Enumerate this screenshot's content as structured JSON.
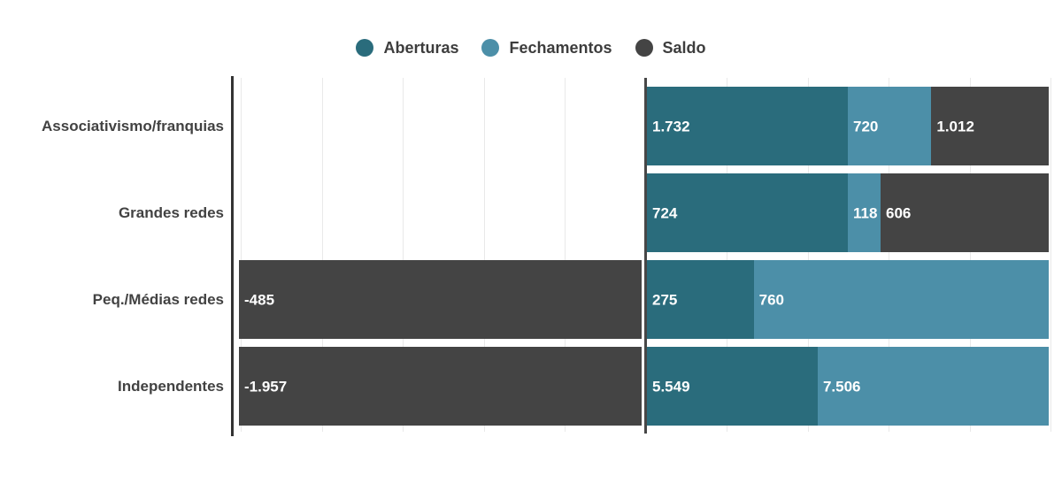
{
  "legend": [
    {
      "label": "Aberturas",
      "color": "#2A6C7C"
    },
    {
      "label": "Fechamentos",
      "color": "#4C8FA8"
    },
    {
      "label": "Saldo",
      "color": "#444444"
    }
  ],
  "chart_data": {
    "type": "bar",
    "orientation": "horizontal",
    "stacked": true,
    "diverging": true,
    "categories": [
      "Associativismo/franquias",
      "Grandes redes",
      "Peq./Médias redes",
      "Independentes"
    ],
    "series": [
      {
        "name": "Aberturas",
        "color": "#2A6C7C",
        "values": [
          1732,
          724,
          275,
          5549
        ],
        "labels": [
          "1.732",
          "724",
          "275",
          "5.549"
        ]
      },
      {
        "name": "Fechamentos",
        "color": "#4C8FA8",
        "values": [
          720,
          118,
          760,
          7506
        ],
        "labels": [
          "720",
          "118",
          "760",
          "7.506"
        ]
      },
      {
        "name": "Saldo",
        "color": "#444444",
        "values": [
          1012,
          606,
          -485,
          -1957
        ],
        "labels": [
          "1.012",
          "606",
          "-485",
          "-1.957"
        ]
      }
    ],
    "title": "",
    "xlabel": "",
    "ylabel": "",
    "legend_position": "top-center",
    "grid": "vertical-light",
    "zero_axis": true,
    "value_label_color": "#ffffff"
  }
}
